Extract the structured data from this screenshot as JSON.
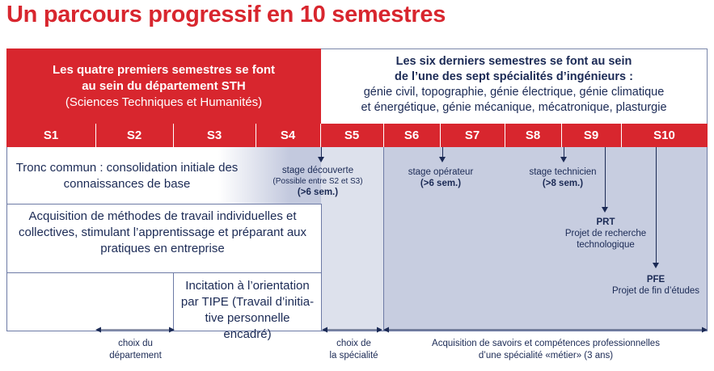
{
  "title": "Un parcours progressif en 10 semestres",
  "header_left": {
    "line1": "Les quatre premiers semestres se font",
    "line2": "au sein du département STH",
    "line3": "(Sciences Techniques et Humanités)"
  },
  "header_right": {
    "line1": "Les six derniers semestres se font au sein",
    "line2": "de l’une des sept spécialités d’ingénieurs :",
    "line3": "génie civil, topographie, génie électrique, génie climatique",
    "line4": "et énergétique, génie mécanique, mécatronique, plasturgie"
  },
  "semesters": [
    "S1",
    "S2",
    "S3",
    "S4",
    "S5",
    "S6",
    "S7",
    "S8",
    "S9",
    "S10"
  ],
  "rows": {
    "tronc_commun": "Tronc commun : consolidation initiale des connaissances de base",
    "acquisition_methodes": "Acquisition de méthodes de travail individuelles et collectives, stimulant l’apprentissage et préparant aux pratiques en entreprise",
    "tipe": "Incitation à l’orientation par TIPE (Travail d’initia-tive personnelle encadré)"
  },
  "stages": {
    "decouverte": {
      "label": "stage découverte",
      "note": "(Possible entre S2 et S3)",
      "duration": "(>6 sem.)"
    },
    "operateur": {
      "label": "stage opérateur",
      "duration": "(>6 sem.)"
    },
    "technicien": {
      "label": "stage technicien",
      "duration": "(>8 sem.)"
    }
  },
  "projects": {
    "prt": {
      "code": "PRT",
      "line1": "Projet de recherche",
      "line2": "technologique"
    },
    "pfe": {
      "code": "PFE",
      "label": "Projet de fin d’études"
    }
  },
  "footer": {
    "choix_departement": {
      "line1": "choix du",
      "line2": "département"
    },
    "choix_specialite": {
      "line1": "choix de",
      "line2": "la spécialité"
    },
    "acquisition": {
      "line1": "Acquisition de savoirs et compétences professionnelles",
      "line2": "d’une spécialité «métier» (3 ans)"
    }
  },
  "colors": {
    "red": "#d8262e",
    "navy": "#1b2a55",
    "band_light": "#dde1ec",
    "band_dark": "#c7cde0"
  }
}
